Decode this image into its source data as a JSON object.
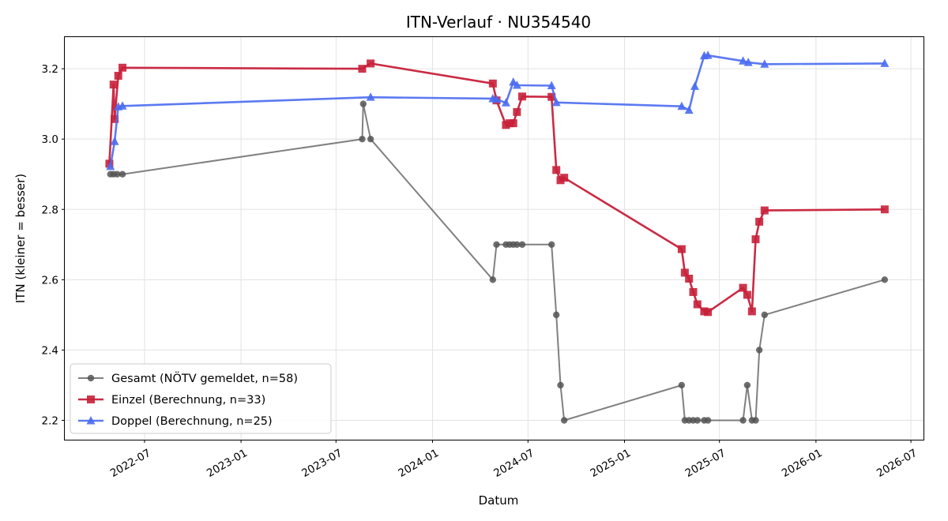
{
  "chart_data": {
    "type": "line",
    "title": "ITN-Verlauf · NU354540",
    "xlabel": "Datum",
    "ylabel": "ITN  (kleiner = besser)",
    "x_ticks": [
      "2022-07",
      "2023-01",
      "2023-07",
      "2024-01",
      "2024-07",
      "2025-01",
      "2025-07",
      "2026-01",
      "2026-07"
    ],
    "xlim": [
      "2022-01-30",
      "2026-07-25"
    ],
    "y_ticks": [
      "2.2",
      "2.4",
      "2.6",
      "2.8",
      "3.0",
      "3.2"
    ],
    "ylim": [
      2.145,
      3.29
    ],
    "grid": true,
    "legend_position": "lower-left",
    "series": [
      {
        "name": "Gesamt (NÖTV gemeldet, n=58)",
        "color": "#555555",
        "marker": "circle",
        "points": [
          [
            "2022-04-27",
            2.9
          ],
          [
            "2022-05-03",
            2.9
          ],
          [
            "2022-05-10",
            2.9
          ],
          [
            "2022-05-20",
            2.9
          ],
          [
            "2023-08-20",
            3.0
          ],
          [
            "2023-08-22",
            3.1
          ],
          [
            "2023-09-05",
            3.0
          ],
          [
            "2024-04-25",
            2.6
          ],
          [
            "2024-05-02",
            2.7
          ],
          [
            "2024-05-20",
            2.7
          ],
          [
            "2024-05-27",
            2.7
          ],
          [
            "2024-06-03",
            2.7
          ],
          [
            "2024-06-10",
            2.7
          ],
          [
            "2024-06-20",
            2.7
          ],
          [
            "2024-08-15",
            2.7
          ],
          [
            "2024-08-24",
            2.5
          ],
          [
            "2024-09-01",
            2.3
          ],
          [
            "2024-09-08",
            2.2
          ],
          [
            "2025-04-20",
            2.3
          ],
          [
            "2025-04-26",
            2.2
          ],
          [
            "2025-05-04",
            2.2
          ],
          [
            "2025-05-12",
            2.2
          ],
          [
            "2025-05-20",
            2.2
          ],
          [
            "2025-06-02",
            2.2
          ],
          [
            "2025-06-09",
            2.2
          ],
          [
            "2025-08-15",
            2.2
          ],
          [
            "2025-08-23",
            2.3
          ],
          [
            "2025-09-01",
            2.2
          ],
          [
            "2025-09-08",
            2.2
          ],
          [
            "2025-09-15",
            2.4
          ],
          [
            "2025-09-25",
            2.5
          ],
          [
            "2026-05-12",
            2.6
          ]
        ]
      },
      {
        "name": "Einzel (Berechnung, n=33)",
        "color": "#c8203a",
        "marker": "square",
        "points": [
          [
            "2022-04-25",
            2.93
          ],
          [
            "2022-05-03",
            3.155
          ],
          [
            "2022-05-05",
            3.057
          ],
          [
            "2022-05-12",
            3.18
          ],
          [
            "2022-05-20",
            3.203
          ],
          [
            "2023-08-20",
            3.2
          ],
          [
            "2023-09-05",
            3.215
          ],
          [
            "2024-04-25",
            3.158
          ],
          [
            "2024-05-02",
            3.11
          ],
          [
            "2024-05-20",
            3.04
          ],
          [
            "2024-05-27",
            3.045
          ],
          [
            "2024-06-03",
            3.045
          ],
          [
            "2024-06-10",
            3.077
          ],
          [
            "2024-06-20",
            3.121
          ],
          [
            "2024-08-15",
            3.12
          ],
          [
            "2024-08-24",
            2.912
          ],
          [
            "2024-09-01",
            2.883
          ],
          [
            "2024-09-08",
            2.89
          ],
          [
            "2025-04-20",
            2.687
          ],
          [
            "2025-04-26",
            2.62
          ],
          [
            "2025-05-04",
            2.603
          ],
          [
            "2025-05-12",
            2.565
          ],
          [
            "2025-05-20",
            2.53
          ],
          [
            "2025-06-02",
            2.51
          ],
          [
            "2025-06-09",
            2.508
          ],
          [
            "2025-08-15",
            2.577
          ],
          [
            "2025-08-23",
            2.557
          ],
          [
            "2025-09-01",
            2.51
          ],
          [
            "2025-09-08",
            2.715
          ],
          [
            "2025-09-15",
            2.765
          ],
          [
            "2025-09-25",
            2.797
          ],
          [
            "2026-05-12",
            2.8
          ]
        ]
      },
      {
        "name": "Doppel (Berechnung, n=25)",
        "color": "#4a6cf0",
        "marker": "triangle",
        "points": [
          [
            "2022-04-27",
            2.922
          ],
          [
            "2022-05-05",
            2.993
          ],
          [
            "2022-05-12",
            3.092
          ],
          [
            "2022-05-20",
            3.094
          ],
          [
            "2023-09-05",
            3.119
          ],
          [
            "2024-04-25",
            3.115
          ],
          [
            "2024-05-02",
            3.113
          ],
          [
            "2024-05-20",
            3.103
          ],
          [
            "2024-06-03",
            3.162
          ],
          [
            "2024-06-10",
            3.153
          ],
          [
            "2024-08-15",
            3.152
          ],
          [
            "2024-08-24",
            3.104
          ],
          [
            "2025-04-20",
            3.093
          ],
          [
            "2025-05-04",
            3.082
          ],
          [
            "2025-05-15",
            3.15
          ],
          [
            "2025-06-02",
            3.237
          ],
          [
            "2025-06-09",
            3.238
          ],
          [
            "2025-08-15",
            3.222
          ],
          [
            "2025-08-25",
            3.218
          ],
          [
            "2025-09-25",
            3.213
          ],
          [
            "2026-05-12",
            3.215
          ]
        ]
      }
    ]
  }
}
